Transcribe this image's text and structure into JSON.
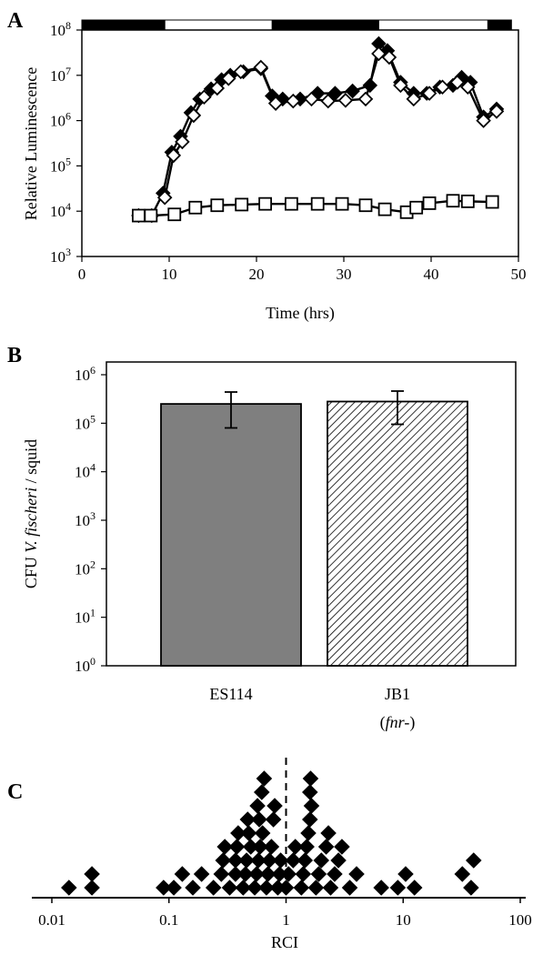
{
  "chart_data": [
    {
      "panel": "A",
      "type": "line",
      "ylabel": "Relative Luminescence",
      "xlabel": "Time (hrs)",
      "log_y": true,
      "xlim": [
        0,
        50
      ],
      "ylim_exp": [
        3,
        8
      ],
      "x_ticks": [
        "0",
        "10",
        "20",
        "30",
        "40",
        "50"
      ],
      "y_tick_exponents": [
        "3",
        "4",
        "5",
        "6",
        "7",
        "8"
      ],
      "y_tick_base": "10",
      "light_dark_bar": [
        {
          "from": 0,
          "to": 9.5,
          "state": "dark"
        },
        {
          "from": 9.5,
          "to": 21.8,
          "state": "light"
        },
        {
          "from": 21.8,
          "to": 34,
          "state": "dark"
        },
        {
          "from": 34,
          "to": 46.5,
          "state": "light"
        },
        {
          "from": 46.5,
          "to": 49.2,
          "state": "dark"
        }
      ],
      "series": [
        {
          "marker": "filled-diamond",
          "x": [
            6.5,
            8,
            9.3,
            10.3,
            11.3,
            12.5,
            13.5,
            14.8,
            16,
            17,
            18.5,
            20.5,
            21.8,
            23,
            25,
            27,
            29,
            31,
            33,
            34,
            35,
            36.5,
            38,
            39.5,
            41,
            42.5,
            43.5,
            44.5,
            46,
            47.5
          ],
          "y": [
            8000,
            8000,
            25000,
            200000,
            450000,
            1500000,
            3000000,
            5000000,
            8000000,
            10000000,
            12000000,
            14000000,
            3500000,
            3000000,
            3000000,
            4000000,
            4000000,
            4500000,
            6000000,
            50000000,
            35000000,
            7000000,
            4000000,
            4000000,
            5500000,
            6000000,
            9000000,
            7000000,
            1200000,
            1800000
          ]
        },
        {
          "marker": "open-diamond",
          "x": [
            9.5,
            10.5,
            11.5,
            12.8,
            14,
            15.5,
            16.8,
            18.2,
            20.5,
            22.2,
            24.2,
            26.3,
            28.2,
            30.2,
            32.5,
            34,
            35.2,
            36.5,
            38,
            39.8,
            41.3,
            43,
            44.2,
            46,
            47.5
          ],
          "y": [
            20000,
            170000,
            340000,
            1300000,
            3300000,
            5200000,
            8500000,
            12000000,
            15000000,
            2400000,
            2700000,
            3000000,
            2700000,
            2800000,
            3000000,
            30000000,
            25000000,
            6000000,
            3000000,
            4000000,
            5500000,
            7000000,
            5500000,
            1000000,
            1600000
          ]
        },
        {
          "marker": "open-square",
          "x": [
            6.5,
            7.9,
            10.6,
            13,
            15.5,
            18.3,
            21,
            24,
            27,
            29.8,
            32.5,
            34.7,
            37.2,
            38.3,
            39.8,
            42.5,
            44.2,
            47
          ],
          "y": [
            8000,
            8000,
            8500,
            12000,
            13500,
            14000,
            14500,
            14500,
            14500,
            14500,
            13500,
            11000,
            9500,
            12000,
            15000,
            17000,
            16500,
            16000
          ]
        }
      ]
    },
    {
      "panel": "B",
      "type": "bar",
      "ylabel_parts": [
        "CFU ",
        "V. fischeri",
        " / squid"
      ],
      "log_y": true,
      "ylim_exp": [
        0,
        6
      ],
      "y_tick_exponents": [
        "0",
        "1",
        "2",
        "3",
        "4",
        "5",
        "6"
      ],
      "y_tick_base": "10",
      "categories": [
        {
          "name": "ES114",
          "sub": ""
        },
        {
          "name": "JB1",
          "sub": "(fnr-)"
        }
      ],
      "values": [
        250000,
        280000
      ],
      "err_low": [
        80000,
        95000
      ],
      "err_high": [
        440000,
        460000
      ],
      "colors": {
        "ES114": "#7f7f7f",
        "JB1": "hatched"
      }
    },
    {
      "panel": "C",
      "type": "scatter",
      "xlabel": "RCI",
      "log_x": true,
      "x_ticks": [
        "0.01",
        "0.1",
        "1",
        "10",
        "100"
      ],
      "reference_line_x": 1,
      "marker": "filled-diamond",
      "points": [
        [
          0.014,
          0
        ],
        [
          0.022,
          0
        ],
        [
          0.022,
          1
        ],
        [
          0.09,
          0
        ],
        [
          0.11,
          0
        ],
        [
          0.13,
          1
        ],
        [
          0.16,
          0
        ],
        [
          0.19,
          1
        ],
        [
          0.24,
          0
        ],
        [
          0.28,
          1
        ],
        [
          0.29,
          2
        ],
        [
          0.3,
          3
        ],
        [
          0.33,
          0
        ],
        [
          0.37,
          1
        ],
        [
          0.37,
          2
        ],
        [
          0.38,
          3
        ],
        [
          0.39,
          4
        ],
        [
          0.43,
          0
        ],
        [
          0.45,
          1
        ],
        [
          0.46,
          2
        ],
        [
          0.47,
          5
        ],
        [
          0.48,
          4
        ],
        [
          0.5,
          3
        ],
        [
          0.54,
          0
        ],
        [
          0.56,
          1
        ],
        [
          0.57,
          6
        ],
        [
          0.58,
          2
        ],
        [
          0.59,
          5
        ],
        [
          0.6,
          3
        ],
        [
          0.62,
          7
        ],
        [
          0.63,
          4
        ],
        [
          0.65,
          8
        ],
        [
          0.68,
          0
        ],
        [
          0.7,
          1
        ],
        [
          0.72,
          2
        ],
        [
          0.75,
          3
        ],
        [
          0.78,
          5
        ],
        [
          0.8,
          6
        ],
        [
          0.85,
          0
        ],
        [
          0.88,
          1
        ],
        [
          0.9,
          2
        ],
        [
          1.0,
          0
        ],
        [
          1.05,
          1
        ],
        [
          1.15,
          2
        ],
        [
          1.2,
          3
        ],
        [
          1.35,
          0
        ],
        [
          1.4,
          1
        ],
        [
          1.45,
          2
        ],
        [
          1.5,
          3
        ],
        [
          1.55,
          4
        ],
        [
          1.6,
          5
        ],
        [
          1.6,
          7
        ],
        [
          1.62,
          8
        ],
        [
          1.65,
          6
        ],
        [
          1.8,
          0
        ],
        [
          1.9,
          1
        ],
        [
          2.0,
          2
        ],
        [
          2.2,
          3
        ],
        [
          2.3,
          4
        ],
        [
          2.4,
          0
        ],
        [
          2.6,
          1
        ],
        [
          2.8,
          2
        ],
        [
          3.0,
          3
        ],
        [
          3.5,
          0
        ],
        [
          4.0,
          1
        ],
        [
          6.5,
          0
        ],
        [
          9.0,
          0
        ],
        [
          10.5,
          1
        ],
        [
          12.5,
          0
        ],
        [
          32.0,
          1
        ],
        [
          38.0,
          0
        ],
        [
          40.0,
          2
        ]
      ]
    }
  ]
}
